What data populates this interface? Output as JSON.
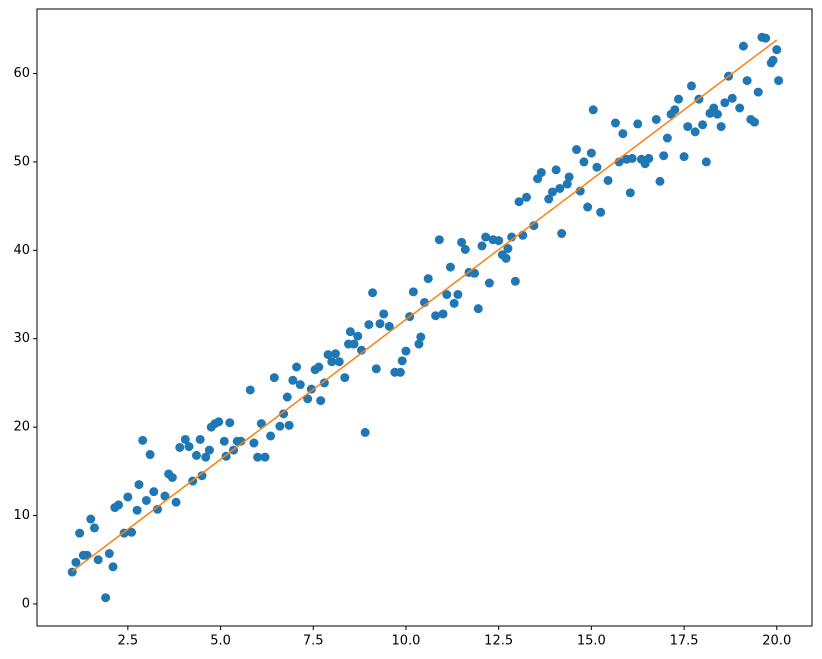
{
  "chart_data": {
    "type": "scatter",
    "xlim": [
      0.05,
      20.95
    ],
    "ylim": [
      -2.5,
      67.3
    ],
    "xticks": [
      2.5,
      {
        "value": 5,
        "label": "5.0"
      },
      7.5,
      {
        "value": 10,
        "label": "10.0"
      },
      12.5,
      {
        "value": 15,
        "label": "15.0"
      },
      17.5,
      {
        "value": 20,
        "label": "20.0"
      }
    ],
    "yticks": [
      0,
      10,
      20,
      30,
      40,
      50,
      60
    ],
    "series": [
      {
        "type": "scatter",
        "color": "#1f77b4",
        "x": [
          1.0,
          1.1,
          1.2,
          1.3,
          1.4,
          1.5,
          1.6,
          1.7,
          1.9,
          2.0,
          2.1,
          2.15,
          2.25,
          2.4,
          2.5,
          2.6,
          2.75,
          2.8,
          2.9,
          3.0,
          3.1,
          3.2,
          3.3,
          3.5,
          3.6,
          3.7,
          3.8,
          3.9,
          4.05,
          4.15,
          4.25,
          4.35,
          4.45,
          4.5,
          4.6,
          4.7,
          4.75,
          4.85,
          4.95,
          5.1,
          5.15,
          5.25,
          5.35,
          5.45,
          5.55,
          5.8,
          5.9,
          6.0,
          6.1,
          6.2,
          6.35,
          6.45,
          6.6,
          6.7,
          6.8,
          6.85,
          6.95,
          7.05,
          7.15,
          7.35,
          7.45,
          7.55,
          7.65,
          7.7,
          7.8,
          7.9,
          8.0,
          8.1,
          8.2,
          8.35,
          8.45,
          8.5,
          8.6,
          8.7,
          8.8,
          8.9,
          9.0,
          9.1,
          9.2,
          9.3,
          9.4,
          9.55,
          9.7,
          9.85,
          9.9,
          10.0,
          10.1,
          10.2,
          10.35,
          10.4,
          10.5,
          10.6,
          10.8,
          10.9,
          11.0,
          11.1,
          11.2,
          11.3,
          11.4,
          11.5,
          11.6,
          11.7,
          11.85,
          11.95,
          12.05,
          12.15,
          12.25,
          12.35,
          12.5,
          12.6,
          12.7,
          12.75,
          12.85,
          12.95,
          13.05,
          13.15,
          13.25,
          13.45,
          13.55,
          13.65,
          13.85,
          13.95,
          14.05,
          14.15,
          14.2,
          14.35,
          14.4,
          14.6,
          14.7,
          14.8,
          14.9,
          15.0,
          15.05,
          15.15,
          15.25,
          15.45,
          15.65,
          15.75,
          15.85,
          15.95,
          16.05,
          16.1,
          16.25,
          16.35,
          16.45,
          16.55,
          16.75,
          16.85,
          16.95,
          17.05,
          17.15,
          17.25,
          17.35,
          17.5,
          17.6,
          17.7,
          17.8,
          17.9,
          18.0,
          18.1,
          18.2,
          18.3,
          18.4,
          18.5,
          18.6,
          18.7,
          18.8,
          19.0,
          19.1,
          19.2,
          19.3,
          19.4,
          19.5,
          19.6,
          19.7,
          19.85,
          19.9,
          20.0,
          20.05
        ],
        "values": [
          3.6,
          4.7,
          8.0,
          5.5,
          5.5,
          9.6,
          8.6,
          5.0,
          0.7,
          5.7,
          4.2,
          10.9,
          11.2,
          8.0,
          12.1,
          8.1,
          10.6,
          13.5,
          18.5,
          11.7,
          16.9,
          12.7,
          10.7,
          12.2,
          14.7,
          14.3,
          11.5,
          17.7,
          18.6,
          17.8,
          13.9,
          16.8,
          18.6,
          14.5,
          16.6,
          17.4,
          20.0,
          20.4,
          20.6,
          18.4,
          16.7,
          20.5,
          17.4,
          18.4,
          18.4,
          24.2,
          18.2,
          16.6,
          20.4,
          16.6,
          19.0,
          25.6,
          20.1,
          21.5,
          23.4,
          20.2,
          25.3,
          26.8,
          24.8,
          23.2,
          24.3,
          26.5,
          26.8,
          23.0,
          25.0,
          28.2,
          27.4,
          28.3,
          27.4,
          25.6,
          29.4,
          30.8,
          29.4,
          30.3,
          28.7,
          19.4,
          31.6,
          35.2,
          26.6,
          31.7,
          32.8,
          31.4,
          26.2,
          26.2,
          27.5,
          28.6,
          32.5,
          35.3,
          29.4,
          30.2,
          34.1,
          36.8,
          32.6,
          41.2,
          32.8,
          35.0,
          38.1,
          34.0,
          35.0,
          40.9,
          40.1,
          37.5,
          37.4,
          33.4,
          40.5,
          41.5,
          36.3,
          41.2,
          41.1,
          39.5,
          39.1,
          40.2,
          41.5,
          36.5,
          45.5,
          41.7,
          46.0,
          42.8,
          48.1,
          48.8,
          45.8,
          46.6,
          49.1,
          47.0,
          41.9,
          47.5,
          48.3,
          51.4,
          46.7,
          50.0,
          44.9,
          51.0,
          55.9,
          49.4,
          44.3,
          47.9,
          54.4,
          50.0,
          53.2,
          50.3,
          46.5,
          50.4,
          54.3,
          50.3,
          49.8,
          50.4,
          54.8,
          47.8,
          50.7,
          52.7,
          55.4,
          55.9,
          57.1,
          50.6,
          54.0,
          58.6,
          53.4,
          57.1,
          54.2,
          50.0,
          55.5,
          56.1,
          55.4,
          54.0,
          56.7,
          59.7,
          57.2,
          56.1,
          63.1,
          59.2,
          54.8,
          54.5,
          57.9,
          64.1,
          64.0,
          61.2,
          61.5,
          62.7,
          59.2
        ]
      },
      {
        "type": "line",
        "color": "#ff7f0e",
        "x": [
          1,
          20
        ],
        "values": [
          3.7,
          63.8
        ]
      }
    ]
  }
}
